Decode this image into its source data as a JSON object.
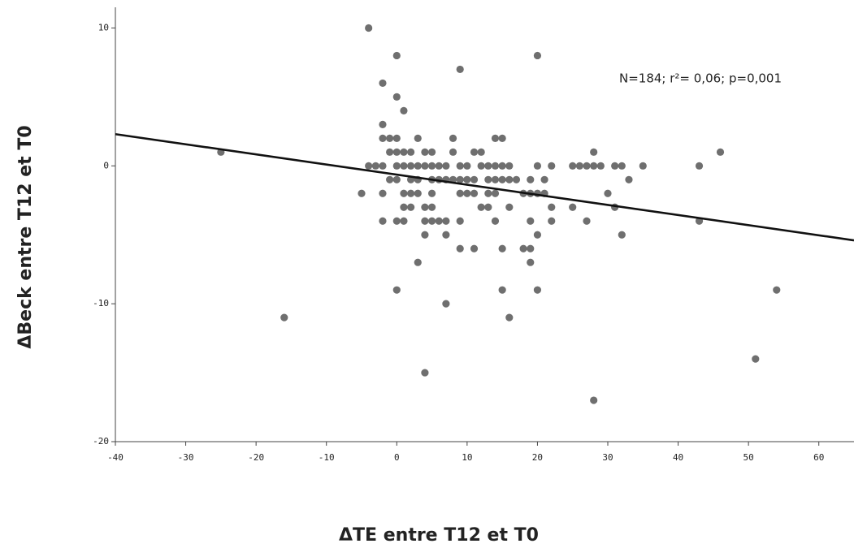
{
  "chart_data": {
    "type": "scatter",
    "x_label": "ΔTE entre T12 et T0",
    "y_label": "ΔBeck entre T12 et T0",
    "annotation": "N=184; r²= 0,06; p=0,001",
    "color": "#6f6f6f",
    "xlim": [
      -40,
      65
    ],
    "ylim": [
      -20,
      11.5
    ],
    "xticks": [
      -40,
      -30,
      -20,
      -10,
      0,
      10,
      20,
      30,
      40,
      50,
      60
    ],
    "yticks": [
      -20,
      -10,
      0,
      10
    ],
    "x": [
      -25,
      -16,
      -4,
      0,
      20,
      9,
      -2,
      0,
      1,
      -2,
      -2,
      -1,
      0,
      3,
      8,
      14,
      15,
      -1,
      0,
      1,
      2,
      4,
      5,
      8,
      11,
      12,
      28,
      46,
      -4,
      -3,
      -2,
      0,
      1,
      2,
      3,
      4,
      5,
      6,
      7,
      9,
      10,
      12,
      13,
      14,
      15,
      16,
      20,
      22,
      25,
      26,
      27,
      28,
      29,
      31,
      32,
      35,
      43,
      -1,
      0,
      2,
      3,
      5,
      6,
      7,
      8,
      9,
      10,
      11,
      13,
      14,
      15,
      16,
      17,
      19,
      21,
      33,
      -5,
      -2,
      1,
      2,
      3,
      5,
      9,
      10,
      11,
      13,
      14,
      18,
      19,
      20,
      21,
      30,
      1,
      2,
      4,
      5,
      12,
      13,
      16,
      22,
      25,
      31,
      -2,
      0,
      1,
      4,
      5,
      6,
      7,
      9,
      14,
      19,
      22,
      27,
      43,
      4,
      7,
      20,
      32,
      9,
      11,
      15,
      18,
      19,
      3,
      19,
      0,
      15,
      20,
      54,
      7,
      16,
      51,
      4,
      28
    ],
    "values": [
      1,
      -11,
      10,
      8,
      8,
      7,
      6,
      5,
      4,
      3,
      2,
      2,
      2,
      2,
      2,
      2,
      2,
      1,
      1,
      1,
      1,
      1,
      1,
      1,
      1,
      1,
      1,
      1,
      0,
      0,
      0,
      0,
      0,
      0,
      0,
      0,
      0,
      0,
      0,
      0,
      0,
      0,
      0,
      0,
      0,
      0,
      0,
      0,
      0,
      0,
      0,
      0,
      0,
      0,
      0,
      0,
      0,
      -1,
      -1,
      -1,
      -1,
      -1,
      -1,
      -1,
      -1,
      -1,
      -1,
      -1,
      -1,
      -1,
      -1,
      -1,
      -1,
      -1,
      -1,
      -1,
      -2,
      -2,
      -2,
      -2,
      -2,
      -2,
      -2,
      -2,
      -2,
      -2,
      -2,
      -2,
      -2,
      -2,
      -2,
      -2,
      -3,
      -3,
      -3,
      -3,
      -3,
      -3,
      -3,
      -3,
      -3,
      -3,
      -4,
      -4,
      -4,
      -4,
      -4,
      -4,
      -4,
      -4,
      -4,
      -4,
      -4,
      -4,
      -4,
      -5,
      -5,
      -5,
      -5,
      -6,
      -6,
      -6,
      -6,
      -6,
      -7,
      -7,
      -9,
      -9,
      -9,
      -9,
      -10,
      -11,
      -14,
      -15,
      -17
    ],
    "fit": {
      "color": "#111111",
      "x": [
        -40,
        65
      ],
      "values": [
        2.3,
        -5.4
      ]
    }
  }
}
